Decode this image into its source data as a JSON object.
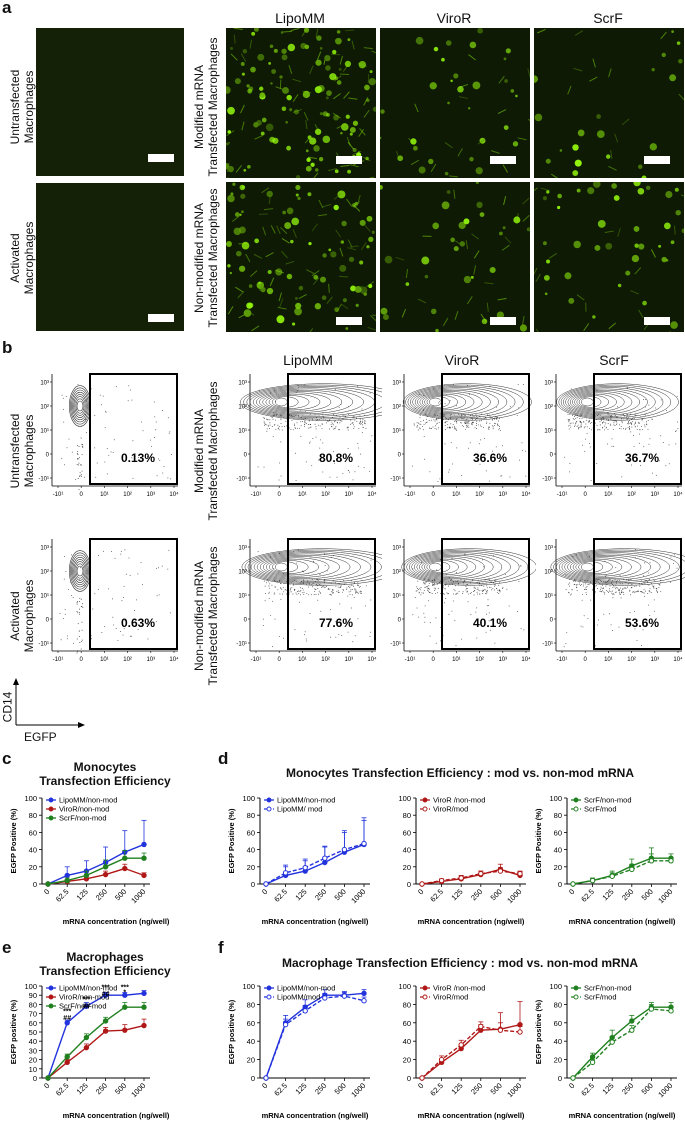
{
  "panels": {
    "a": "a",
    "b": "b",
    "c": "c",
    "d": "d",
    "e": "e",
    "f": "f"
  },
  "columns": [
    "LipoMM",
    "ViroR",
    "ScrF"
  ],
  "row_labels": {
    "untransfected": [
      "Untransfected",
      "Macrophages"
    ],
    "activated": [
      "Activated",
      "Macrophages"
    ],
    "modified": [
      "Modified mRNA",
      "Transfected Macrophages"
    ],
    "nonmodified": [
      "Non-modified mRNA",
      "Transfected Macrophages"
    ]
  },
  "flow": {
    "percentages": {
      "untransfected": "0.13%",
      "activated": "0.63%",
      "mod_lipomm": "80.8%",
      "mod_viror": "36.6%",
      "mod_scrf": "36.7%",
      "nonmod_lipomm": "77.6%",
      "nonmod_viror": "40.1%",
      "nonmod_scrf": "53.6%"
    },
    "y_axis": "CD14",
    "x_axis": "EGFP",
    "y_ticks": [
      "10³",
      "10²",
      "10¹",
      "0",
      "-10¹"
    ],
    "x_ticks": [
      "-10¹",
      "0",
      "10¹",
      "10²",
      "10³",
      "10⁴"
    ]
  },
  "chart_data": [
    {
      "id": "c",
      "type": "line",
      "title": "Monocytes Transfection Efficiency",
      "xlabel": "mRNA concentration (ng/well)",
      "ylabel": "EGFP Positive (%)",
      "categories": [
        "0",
        "62.5",
        "125",
        "250",
        "500",
        "1000"
      ],
      "ylim": [
        0,
        100
      ],
      "yticks": [
        "0",
        "20",
        "40",
        "60",
        "80",
        "100"
      ],
      "series": [
        {
          "name": "LipoMM/non-mod",
          "color": "#2233dd",
          "dashed": false,
          "values": [
            0,
            10,
            15,
            25,
            37,
            46
          ],
          "errors": [
            0,
            10,
            12,
            18,
            25,
            28
          ]
        },
        {
          "name": "ViroR/non-mod",
          "color": "#b01818",
          "dashed": false,
          "values": [
            0,
            3,
            6,
            11,
            18,
            10
          ],
          "errors": [
            0,
            2,
            3,
            4,
            5,
            3
          ]
        },
        {
          "name": "ScrF/non-mod",
          "color": "#208020",
          "dashed": false,
          "values": [
            0,
            4,
            10,
            20,
            30,
            30
          ],
          "errors": [
            0,
            3,
            5,
            8,
            9,
            6
          ]
        }
      ]
    },
    {
      "id": "d1",
      "type": "line",
      "title": "",
      "xlabel": "mRNA concentration (ng/well)",
      "ylabel": "EGFP Positive (%)",
      "categories": [
        "0",
        "62.5",
        "125",
        "250",
        "500",
        "1000"
      ],
      "ylim": [
        0,
        100
      ],
      "yticks": [
        "0",
        "20",
        "40",
        "60",
        "80",
        "100"
      ],
      "series": [
        {
          "name": "LipoMM/non-mod",
          "color": "#2233dd",
          "dashed": false,
          "values": [
            0,
            10,
            15,
            25,
            37,
            46
          ],
          "errors": [
            0,
            10,
            12,
            18,
            25,
            28
          ]
        },
        {
          "name": "LipoMM/ mod",
          "color": "#2233dd",
          "dashed": true,
          "values": [
            0,
            13,
            19,
            30,
            40,
            47
          ],
          "errors": [
            0,
            9,
            10,
            14,
            20,
            30
          ]
        }
      ]
    },
    {
      "id": "d2",
      "type": "line",
      "title": "",
      "xlabel": "mRNA concentration (ng/well)",
      "ylabel": "",
      "categories": [
        "0",
        "62.5",
        "125",
        "250",
        "500",
        "1000"
      ],
      "ylim": [
        0,
        100
      ],
      "yticks": [
        "0",
        "20",
        "40",
        "60",
        "80",
        "100"
      ],
      "series": [
        {
          "name": "ViroR /non-mod",
          "color": "#b01818",
          "dashed": false,
          "values": [
            0,
            3,
            6,
            11,
            17,
            10
          ],
          "errors": [
            0,
            2,
            3,
            4,
            6,
            4
          ]
        },
        {
          "name": "ViroR/mod",
          "color": "#b01818",
          "dashed": true,
          "values": [
            0,
            4,
            7,
            12,
            15,
            12
          ],
          "errors": [
            0,
            2,
            3,
            3,
            4,
            3
          ]
        }
      ]
    },
    {
      "id": "d3",
      "type": "line",
      "title": "",
      "xlabel": "mRNA concentration (ng/well)",
      "ylabel": "EGFP Positive (%)",
      "categories": [
        "0",
        "62.5",
        "125",
        "250",
        "500",
        "1000"
      ],
      "ylim": [
        0,
        100
      ],
      "yticks": [
        "0",
        "20",
        "40",
        "60",
        "80",
        "100"
      ],
      "series": [
        {
          "name": "ScrF/non-mod",
          "color": "#208020",
          "dashed": false,
          "values": [
            0,
            4,
            10,
            21,
            30,
            30
          ],
          "errors": [
            0,
            3,
            5,
            8,
            12,
            5
          ]
        },
        {
          "name": "ScrF/mod",
          "color": "#208020",
          "dashed": true,
          "values": [
            0,
            4,
            9,
            17,
            27,
            27
          ],
          "errors": [
            0,
            2,
            4,
            6,
            8,
            4
          ]
        }
      ]
    },
    {
      "id": "e",
      "type": "line",
      "title": "Macrophages Transfection Efficiency",
      "xlabel": "mRNA concentration (ng/well)",
      "ylabel": "EGFP positive (%)",
      "categories": [
        "0",
        "62.5",
        "125",
        "250",
        "500",
        "1000"
      ],
      "ylim": [
        0,
        100
      ],
      "yticks": [
        "0",
        "10",
        "20",
        "30",
        "40",
        "50",
        "60",
        "70",
        "80",
        "90",
        "100"
      ],
      "annotations": [
        "***",
        "##",
        "***",
        "##",
        "***",
        "##",
        "***",
        "*"
      ],
      "series": [
        {
          "name": "LipoMM/non-mod",
          "color": "#2233dd",
          "dashed": false,
          "values": [
            0,
            60,
            78,
            90,
            90,
            92
          ],
          "errors": [
            0,
            3,
            4,
            3,
            3,
            3
          ]
        },
        {
          "name": "ViroR/non-mod",
          "color": "#b01818",
          "dashed": false,
          "values": [
            0,
            17,
            33,
            51,
            52,
            57
          ],
          "errors": [
            0,
            3,
            4,
            4,
            6,
            7
          ]
        },
        {
          "name": "ScrF/non-mod",
          "color": "#208020",
          "dashed": false,
          "values": [
            0,
            23,
            44,
            62,
            77,
            77
          ],
          "errors": [
            0,
            3,
            4,
            4,
            5,
            5
          ]
        }
      ]
    },
    {
      "id": "f1",
      "type": "line",
      "title": "",
      "xlabel": "mRNA concentration (ng/well)",
      "ylabel": "EGFP positive (%)",
      "categories": [
        "0",
        "62.5",
        "125",
        "250",
        "500",
        "1000"
      ],
      "ylim": [
        0,
        100
      ],
      "yticks": [
        "0",
        "20",
        "40",
        "60",
        "80",
        "100"
      ],
      "series": [
        {
          "name": "LipoMM/non-mod",
          "color": "#2233dd",
          "dashed": false,
          "values": [
            0,
            60,
            77,
            90,
            90,
            92
          ],
          "errors": [
            0,
            8,
            8,
            6,
            4,
            4
          ]
        },
        {
          "name": "LipoMM/mod",
          "color": "#2233dd",
          "dashed": true,
          "values": [
            0,
            58,
            73,
            87,
            89,
            84
          ],
          "errors": [
            0,
            6,
            6,
            5,
            4,
            4
          ]
        }
      ]
    },
    {
      "id": "f2",
      "type": "line",
      "title": "",
      "xlabel": "mRNA concentration (ng/well)",
      "ylabel": "",
      "categories": [
        "0",
        "62.5",
        "125",
        "250",
        "500",
        "1000"
      ],
      "ylim": [
        0,
        100
      ],
      "yticks": [
        "0",
        "20",
        "40",
        "60",
        "80",
        "100"
      ],
      "series": [
        {
          "name": "ViroR /non-mod",
          "color": "#b01818",
          "dashed": false,
          "values": [
            0,
            17,
            32,
            52,
            53,
            58
          ],
          "errors": [
            0,
            4,
            5,
            6,
            18,
            25
          ]
        },
        {
          "name": "ViroR/mod",
          "color": "#b01818",
          "dashed": true,
          "values": [
            0,
            20,
            36,
            56,
            52,
            50
          ],
          "errors": [
            0,
            4,
            5,
            5,
            8,
            6
          ]
        }
      ]
    },
    {
      "id": "f3",
      "type": "line",
      "title": "",
      "xlabel": "mRNA concentration (ng/well)",
      "ylabel": "EGFP positive (%)",
      "categories": [
        "0",
        "62.5",
        "125",
        "250",
        "500",
        "1000"
      ],
      "ylim": [
        0,
        100
      ],
      "yticks": [
        "0",
        "20",
        "40",
        "60",
        "80",
        "100"
      ],
      "series": [
        {
          "name": "ScrF/non-mod",
          "color": "#208020",
          "dashed": false,
          "values": [
            0,
            23,
            44,
            62,
            77,
            77
          ],
          "errors": [
            0,
            4,
            8,
            6,
            5,
            5
          ]
        },
        {
          "name": "ScrF/mod",
          "color": "#208020",
          "dashed": true,
          "values": [
            0,
            17,
            39,
            52,
            75,
            73
          ],
          "errors": [
            0,
            3,
            6,
            5,
            5,
            5
          ]
        }
      ]
    }
  ],
  "titles": {
    "d": "Monocytes Transfection Efficiency : mod vs. non-mod mRNA",
    "f": "Macrophage Transfection Efficiency : mod vs. non-mod mRNA",
    "c_line1": "Monocytes",
    "c_line2": "Transfection Efficiency",
    "e_line1": "Macrophages",
    "e_line2": "Transfection Efficiency"
  }
}
